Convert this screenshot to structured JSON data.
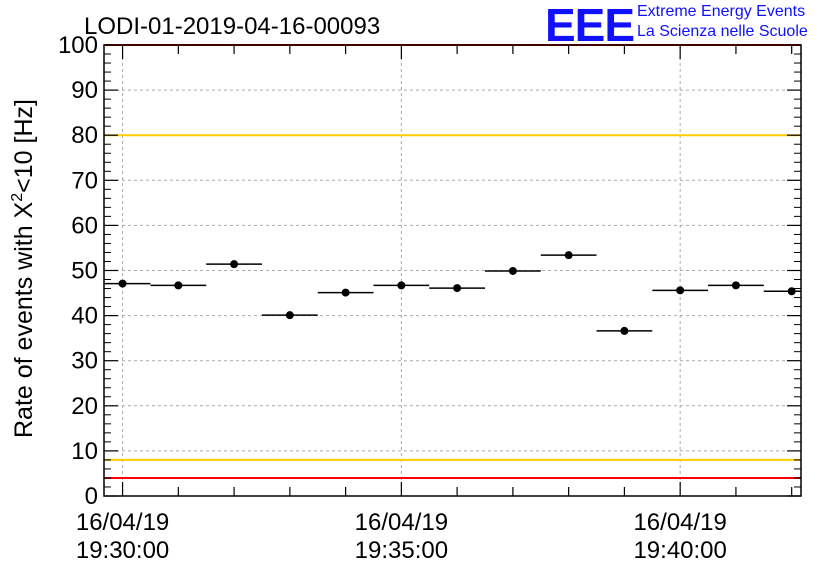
{
  "title": "LODI-01-2019-04-16-00093",
  "logo": {
    "mark": "EEE",
    "line1": "Extreme Energy Events",
    "line2": "La Scienza nelle Scuole",
    "color": "#1010ff"
  },
  "chart_data": {
    "type": "scatter",
    "title": "LODI-01-2019-04-16-00093",
    "ylabel_main": "Rate of events with X",
    "ylabel_sup": "2",
    "ylabel_tail": "<10 [Hz]",
    "ylim": [
      0,
      100
    ],
    "y_major_ticks": [
      0,
      10,
      20,
      30,
      40,
      50,
      60,
      70,
      80,
      90,
      100
    ],
    "xlim_minutes": [
      -0.333,
      12.167
    ],
    "x_tick_labels": [
      {
        "minute": 0,
        "date": "16/04/19",
        "time": "19:30:00"
      },
      {
        "minute": 5,
        "date": "16/04/19",
        "time": "19:35:00"
      },
      {
        "minute": 10,
        "date": "16/04/19",
        "time": "19:40:00"
      }
    ],
    "grid": true,
    "points": [
      {
        "t": 0,
        "y": 47.1
      },
      {
        "t": 1,
        "y": 46.7
      },
      {
        "t": 2,
        "y": 51.4
      },
      {
        "t": 3,
        "y": 40.1
      },
      {
        "t": 4,
        "y": 45.1
      },
      {
        "t": 5,
        "y": 46.7
      },
      {
        "t": 6,
        "y": 46.1
      },
      {
        "t": 7,
        "y": 49.9
      },
      {
        "t": 8,
        "y": 53.4
      },
      {
        "t": 9,
        "y": 36.6
      },
      {
        "t": 10,
        "y": 45.6
      },
      {
        "t": 11,
        "y": 46.7
      },
      {
        "t": 12,
        "y": 45.4
      }
    ],
    "bin_width_minutes": 1,
    "reference_lines": [
      {
        "y": 100,
        "color": "#ff0000"
      },
      {
        "y": 80,
        "color": "#ffcc00"
      },
      {
        "y": 8,
        "color": "#ffcc00"
      },
      {
        "y": 4,
        "color": "#ff0000"
      }
    ]
  }
}
